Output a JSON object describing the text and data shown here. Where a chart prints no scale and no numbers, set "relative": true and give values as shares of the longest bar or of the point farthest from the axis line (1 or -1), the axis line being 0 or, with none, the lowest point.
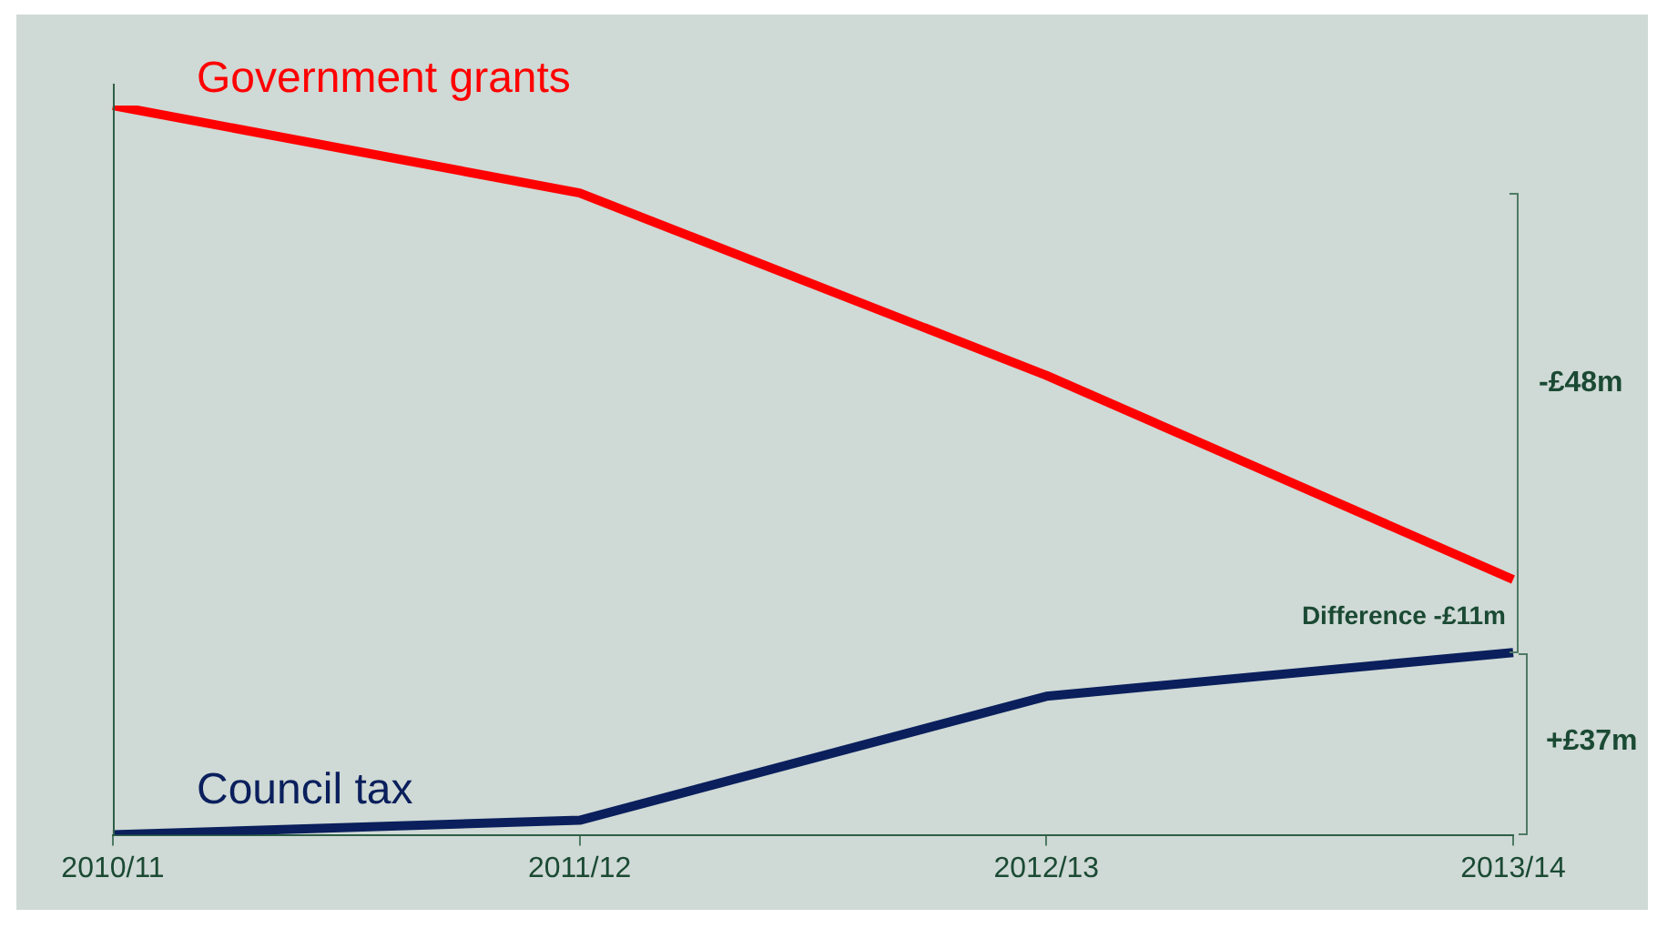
{
  "chart_data": {
    "type": "line",
    "categories": [
      "2010/11",
      "2011/12",
      "2012/13",
      "2013/14"
    ],
    "relative": true,
    "tick_labels": "x",
    "marker": "none",
    "line_style": "solid",
    "series": [
      {
        "name": "Government grants",
        "color": "#ff0000",
        "values": [
          1,
          0.88,
          0.63,
          0.35
        ]
      },
      {
        "name": "Council tax",
        "color": "#0a1f5c",
        "values": [
          0,
          0.02,
          0.19,
          0.25
        ]
      }
    ],
    "annotations": [
      "-£48m",
      "Difference -£11m",
      "+£37m"
    ]
  }
}
